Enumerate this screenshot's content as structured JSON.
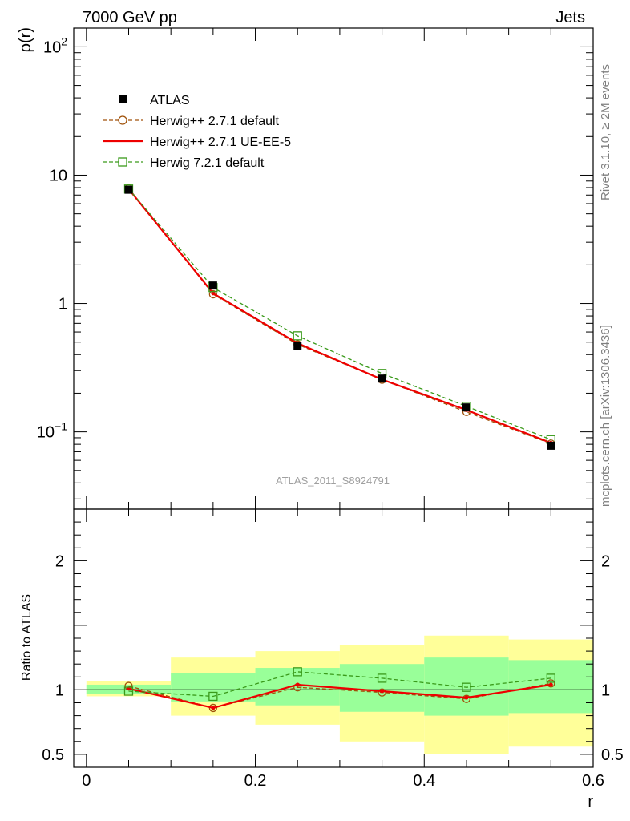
{
  "header": {
    "left": "7000 GeV pp",
    "right": "Jets"
  },
  "side_labels": {
    "rivet": "Rivet 3.1.10, ≥ 2M events",
    "url": "mcplots.cern.ch [arXiv:1306.3436]"
  },
  "watermark": "ATLAS_2011_S8924791",
  "chart_data": [
    {
      "type": "scatter",
      "panel": "main",
      "ylabel": "ρ(r)",
      "yscale": "log",
      "ylim": [
        0.025,
        140
      ],
      "xlim": [
        -0.015,
        0.6
      ],
      "y_ticks": [
        {
          "value": 100,
          "label": "10",
          "sup": "2"
        },
        {
          "value": 10,
          "label": "10",
          "sup": ""
        },
        {
          "value": 1,
          "label": "1",
          "sup": ""
        },
        {
          "value": 0.1,
          "label": "10",
          "sup": "−1"
        }
      ],
      "legend_position": "top-left",
      "x": [
        0.05,
        0.15,
        0.25,
        0.35,
        0.45,
        0.55
      ],
      "series": [
        {
          "name": "ATLAS",
          "style": "data",
          "color": "#000000",
          "values": [
            7.7,
            1.38,
            0.47,
            0.26,
            0.155,
            0.078
          ]
        },
        {
          "name": "Herwig++ 2.7.1 default",
          "style": "dashed-circle",
          "color": "#a0520a",
          "values": [
            7.9,
            1.18,
            0.48,
            0.255,
            0.143,
            0.081
          ]
        },
        {
          "name": "Herwig++ 2.7.1 UE-EE-5",
          "style": "solid",
          "color": "#ee0000",
          "values": [
            7.8,
            1.2,
            0.49,
            0.256,
            0.148,
            0.082
          ]
        },
        {
          "name": "Herwig 7.2.1 default",
          "style": "dashed-square",
          "color": "#3a9a1a",
          "values": [
            7.8,
            1.33,
            0.56,
            0.285,
            0.158,
            0.087
          ]
        }
      ]
    },
    {
      "type": "line",
      "panel": "ratio",
      "xlabel": "r",
      "ylabel": "Ratio to ATLAS",
      "ylim": [
        0.4,
        2.4
      ],
      "xlim": [
        -0.015,
        0.6
      ],
      "x_ticks": [
        {
          "value": 0,
          "label": "0"
        },
        {
          "value": 0.2,
          "label": "0.2"
        },
        {
          "value": 0.4,
          "label": "0.4"
        },
        {
          "value": 0.6,
          "label": "0.6"
        }
      ],
      "y_ticks": [
        {
          "value": 2,
          "label": "2"
        },
        {
          "value": 1,
          "label": "1"
        },
        {
          "value": 0.5,
          "label": "0.5"
        }
      ],
      "bins": [
        [
          0,
          0.1
        ],
        [
          0.1,
          0.2
        ],
        [
          0.2,
          0.3
        ],
        [
          0.3,
          0.4
        ],
        [
          0.4,
          0.5
        ],
        [
          0.5,
          0.6
        ]
      ],
      "band_outer": [
        [
          0.95,
          1.07
        ],
        [
          0.8,
          1.25
        ],
        [
          0.73,
          1.3
        ],
        [
          0.6,
          1.35
        ],
        [
          0.5,
          1.42
        ],
        [
          0.56,
          1.39
        ]
      ],
      "band_inner": [
        [
          0.97,
          1.04
        ],
        [
          0.91,
          1.13
        ],
        [
          0.88,
          1.17
        ],
        [
          0.83,
          1.2
        ],
        [
          0.8,
          1.25
        ],
        [
          0.82,
          1.23
        ]
      ],
      "band_colors": {
        "outer": "#ffff99",
        "inner": "#99ff99"
      },
      "x": [
        0.05,
        0.15,
        0.25,
        0.35,
        0.45,
        0.55
      ],
      "series": [
        {
          "name": "Herwig++ 2.7.1 default",
          "style": "dashed-circle",
          "color": "#a0520a",
          "values": [
            1.03,
            0.86,
            1.02,
            0.98,
            0.93,
            1.05
          ]
        },
        {
          "name": "Herwig++ 2.7.1 UE-EE-5",
          "style": "solid",
          "color": "#ee0000",
          "values": [
            1.01,
            0.86,
            1.04,
            0.99,
            0.94,
            1.04
          ]
        },
        {
          "name": "Herwig 7.2.1 default",
          "style": "dashed-square",
          "color": "#3a9a1a",
          "values": [
            0.99,
            0.95,
            1.14,
            1.09,
            1.02,
            1.09
          ]
        }
      ]
    }
  ]
}
